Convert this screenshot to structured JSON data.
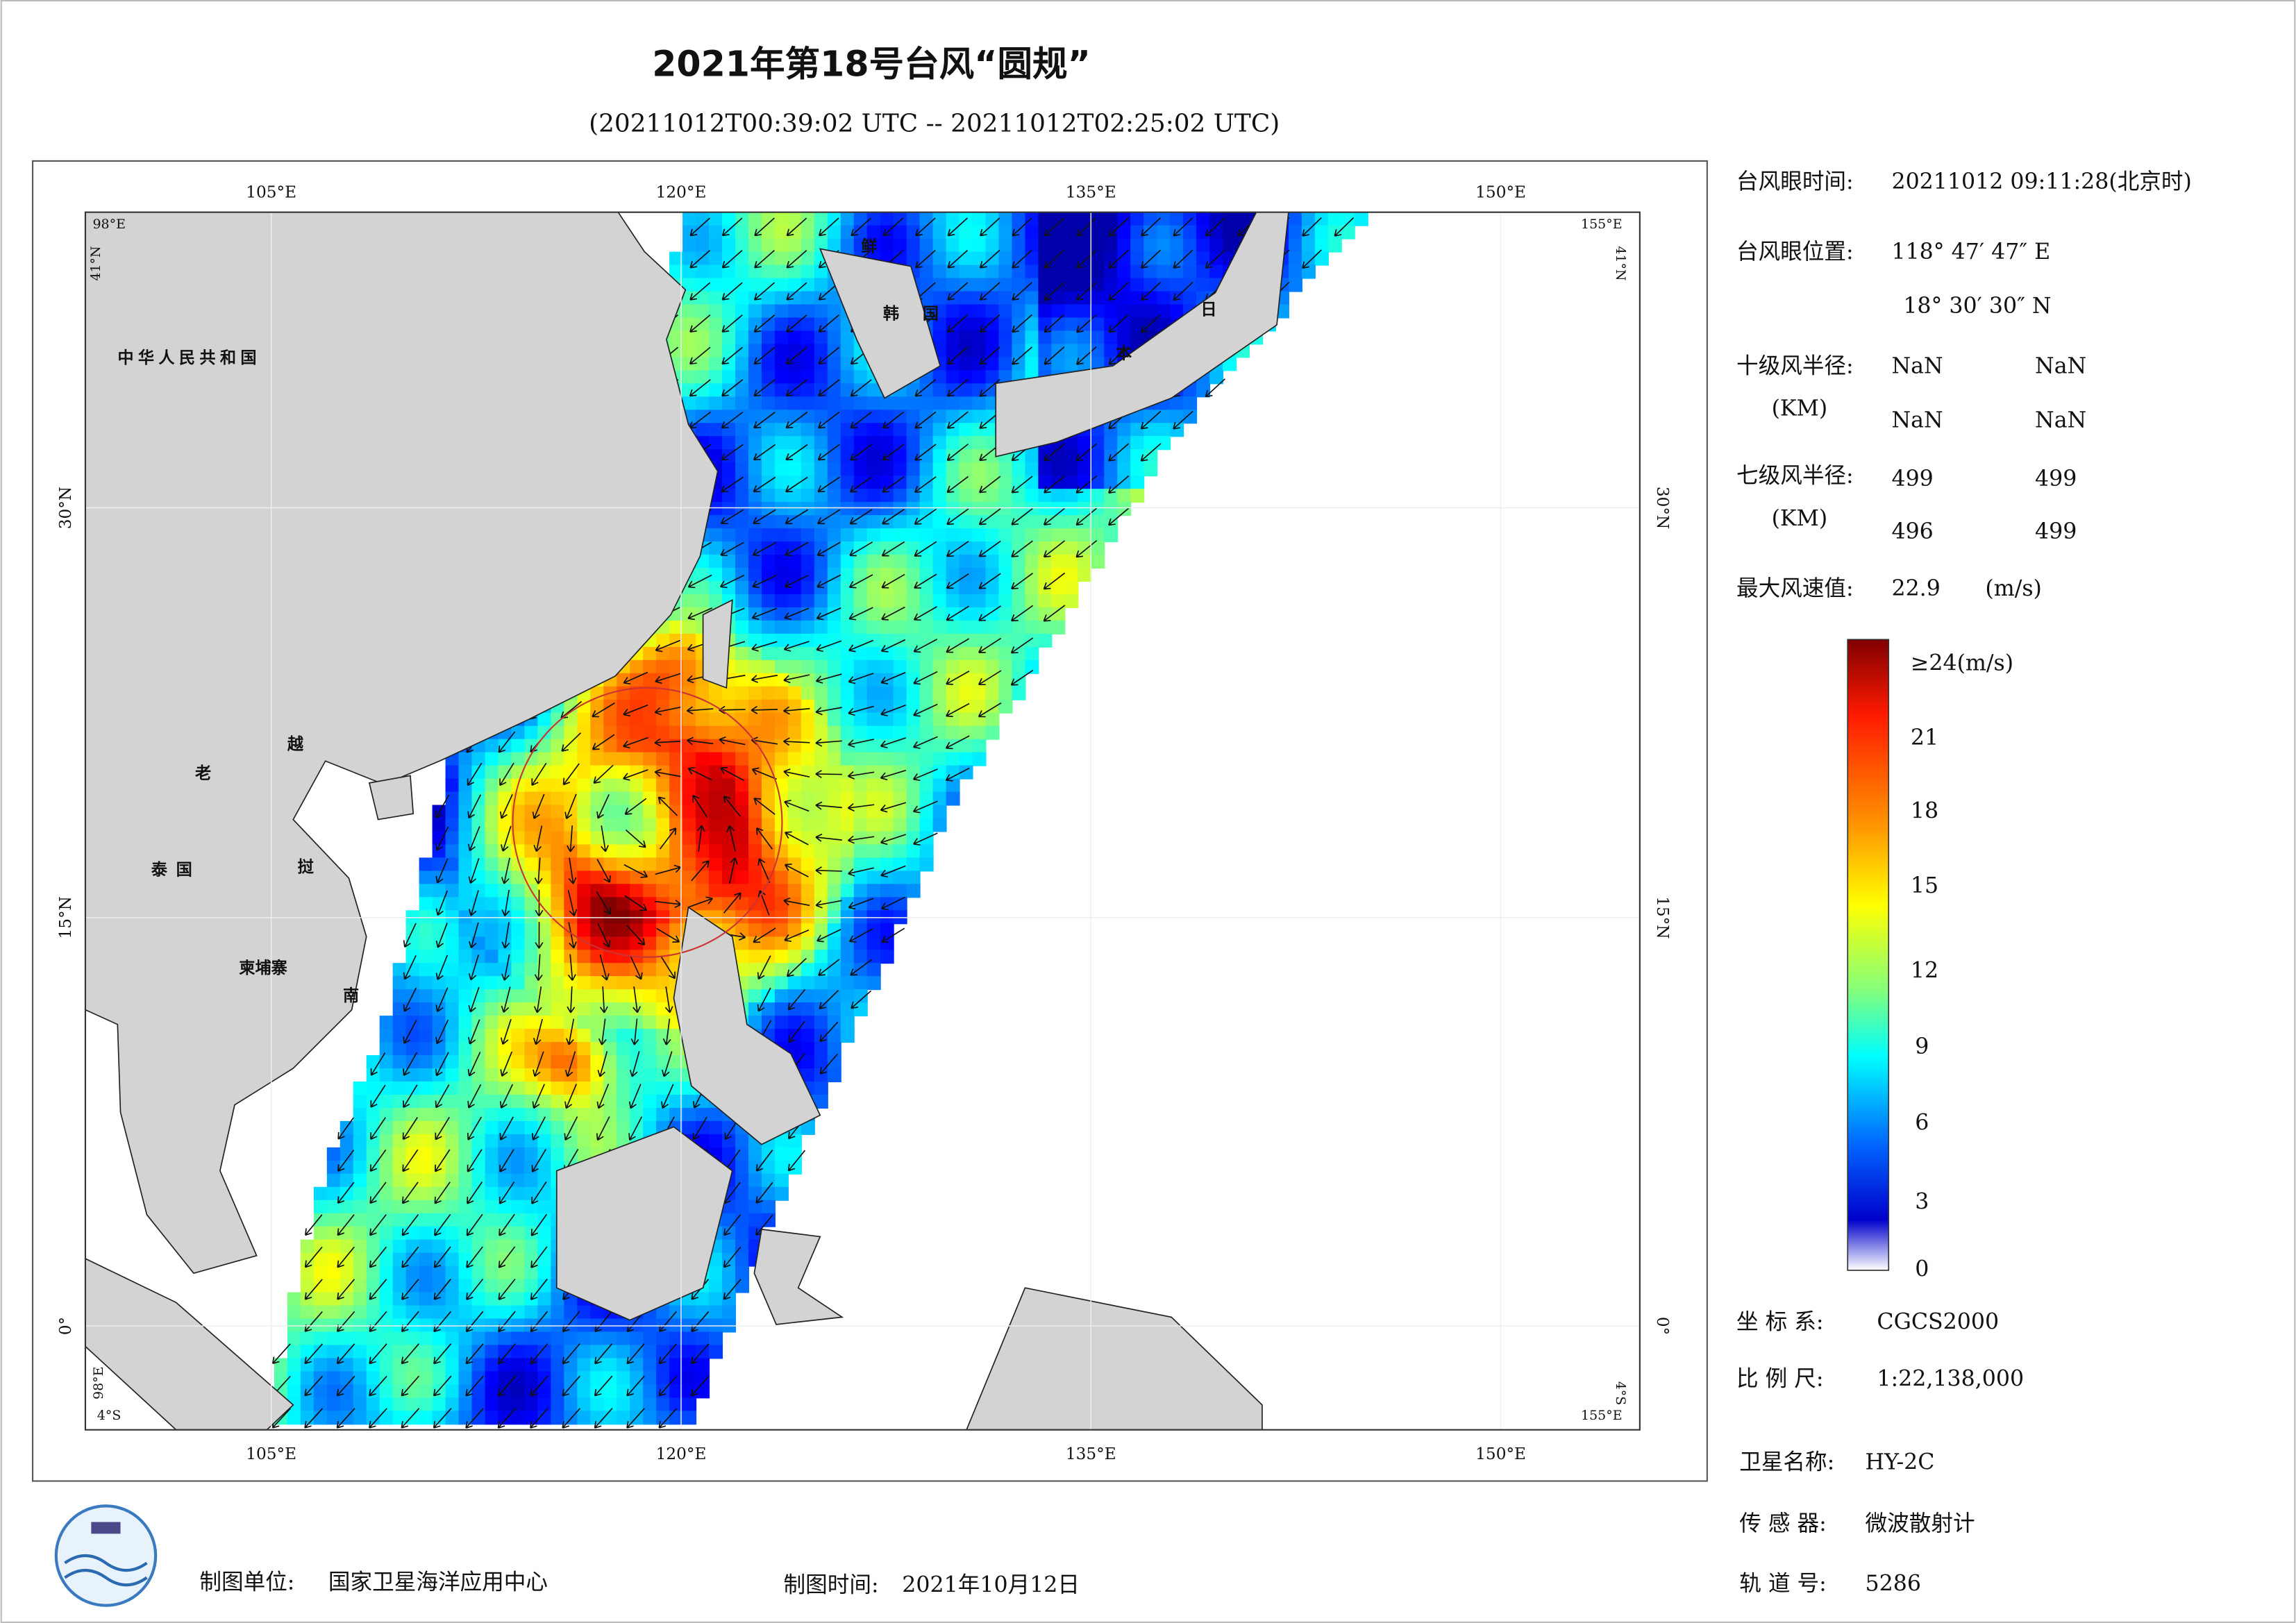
{
  "title": "2021年第18号台风“圆规”",
  "subtitle": "(20211012T00:39:02 UTC -- 20211012T02:25:02 UTC)",
  "map": {
    "lon_labels": [
      "105°E",
      "120°E",
      "135°E",
      "150°E"
    ],
    "lat_labels": [
      "30°N",
      "15°N",
      "0°"
    ],
    "corners": {
      "tl_lon": "98°E",
      "tl_lat": "41°N",
      "tr_lon": "155°E",
      "tr_lat": "41°N",
      "bl_lon": "98°E",
      "bl_lat": "4°S",
      "br_lat": "4°S",
      "br_lon": "155°E"
    },
    "places": [
      "中华人民共和国",
      "鲜",
      "韩",
      "国",
      "日",
      "本",
      "老",
      "越",
      "泰国",
      "挝",
      "柬埔寨",
      "南"
    ]
  },
  "info": {
    "eye_time_label": "台风眼时间:",
    "eye_time": "20211012 09:11:28(北京时)",
    "eye_pos_label": "台风眼位置:",
    "eye_lon": "118° 47′ 47″ E",
    "eye_lat": "18° 30′ 30″ N",
    "r10_label": "十级风半径:",
    "unit": "(KM)",
    "r10": [
      "NaN",
      "NaN",
      "NaN",
      "NaN"
    ],
    "r7_label": "七级风半径:",
    "r7": [
      "499",
      "499",
      "496",
      "499"
    ],
    "max_wind_label": "最大风速值:",
    "max_wind": "22.9",
    "max_wind_unit": "(m/s)"
  },
  "colorbar": {
    "labels": [
      "≥24(m/s)",
      "21",
      "18",
      "15",
      "12",
      "9",
      "6",
      "3",
      "0"
    ]
  },
  "meta": {
    "crs_label": "坐 标 系:",
    "crs": "CGCS2000",
    "scale_label": "比 例 尺:",
    "scale": "1:22,138,000",
    "sat_label": "卫星名称:",
    "sat": "HY-2C",
    "sensor_label": "传 感 器:",
    "sensor": "微波散射计",
    "orbit_label": "轨 道 号:",
    "orbit": "5286"
  },
  "footer": {
    "unit_label": "制图单位:",
    "unit": "国家卫星海洋应用中心",
    "time_label": "制图时间:",
    "time": "2021年10月12日"
  }
}
